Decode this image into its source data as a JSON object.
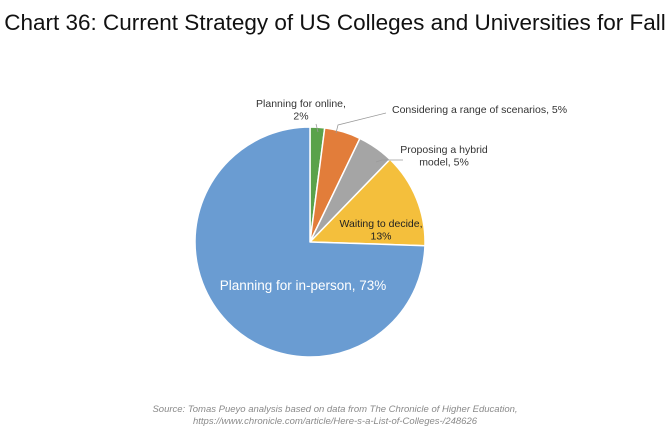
{
  "chart_data": {
    "type": "pie",
    "title": "Chart 36: Current Strategy of US Colleges and Universities for Fall",
    "slices": [
      {
        "label": "Planning for online, 2%",
        "label_lines": [
          "Planning for online,",
          "2%"
        ],
        "value": 2,
        "color": "#5aa24a"
      },
      {
        "label": "Considering a range of scenarios, 5%",
        "label_lines": [
          "Considering a range of scenarios, 5%"
        ],
        "value": 5,
        "color": "#e27d3a"
      },
      {
        "label": "Proposing a hybrid model, 5%",
        "label_lines": [
          "Proposing a hybrid",
          "model, 5%"
        ],
        "value": 5,
        "color": "#a5a5a5"
      },
      {
        "label": "Waiting to decide, 13%",
        "label_lines": [
          "Waiting to decide,",
          "13%"
        ],
        "value": 13,
        "color": "#f4bf3c"
      },
      {
        "label": "Planning for in-person, 73%",
        "label_lines": [
          "Planning for in-person, 73%"
        ],
        "value": 73,
        "color": "#6a9cd2"
      }
    ],
    "source_lines": [
      "Source: Tomas Pueyo analysis based on data from The Chronicle of Higher Education,",
      "https://www.chronicle.com/article/Here-s-a-List-of-Colleges-/248626"
    ]
  }
}
